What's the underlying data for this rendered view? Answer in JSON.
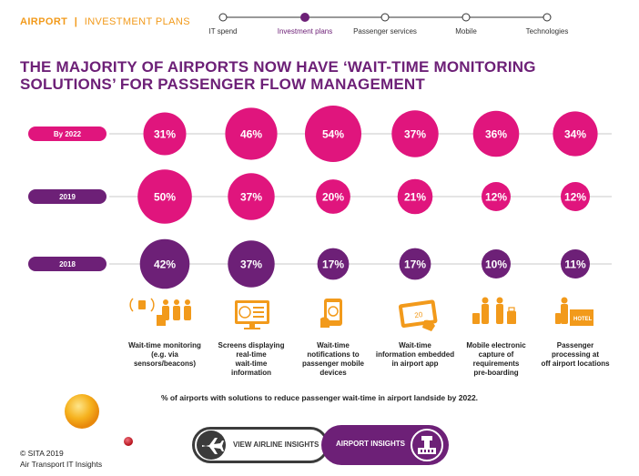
{
  "header": {
    "section": "AIRPORT",
    "separator": "|",
    "subsection": "INVESTMENT PLANS"
  },
  "nav": {
    "items": [
      {
        "label": "IT spend",
        "active": false
      },
      {
        "label": "Investment plans",
        "active": true
      },
      {
        "label": "Passenger services",
        "active": false
      },
      {
        "label": "Mobile",
        "active": false
      },
      {
        "label": "Technologies",
        "active": false
      }
    ]
  },
  "title_line1": "THE MAJORITY OF AIRPORTS NOW HAVE ‘WAIT-TIME MONITORING",
  "title_line2": "SOLUTIONS’ FOR PASSENGER FLOW MANAGEMENT",
  "colors": {
    "purple": "#6d2077",
    "magenta": "#e0157d",
    "orange": "#f29a1b",
    "dark": "#3b3b3b"
  },
  "chart_data": {
    "type": "bubble",
    "title": "THE MAJORITY OF AIRPORTS NOW HAVE ‘WAIT-TIME MONITORING SOLUTIONS’ FOR PASSENGER FLOW MANAGEMENT",
    "unit": "%",
    "categories": [
      "Wait-time monitoring (e.g. via sensors/beacons)",
      "Screens displaying real-time wait-time information",
      "Wait-time notifications to passenger mobile devices",
      "Wait-time information embedded in airport app",
      "Mobile electronic capture of requirements pre-boarding",
      "Passenger processing at off airport locations"
    ],
    "category_lines": [
      [
        "Wait-time monitoring",
        "(e.g. via sensors/beacons)"
      ],
      [
        "Screens displaying",
        "real-time",
        "wait-time",
        "information"
      ],
      [
        "Wait-time",
        "notifications to",
        "passenger mobile",
        "devices"
      ],
      [
        "Wait-time",
        "information embedded",
        "in airport app"
      ],
      [
        "Mobile electronic",
        "capture of",
        "requirements",
        "pre-boarding"
      ],
      [
        "Passenger",
        "processing at",
        "off airport locations"
      ]
    ],
    "category_icons": [
      "sensor-beacon-icon",
      "wait-time-screen-icon",
      "mobile-notification-icon",
      "airport-app-icon",
      "mobile-capture-icon",
      "hotel-checkin-icon"
    ],
    "series": [
      {
        "name": "By 2022",
        "color": "#e0157d",
        "values": [
          31,
          46,
          54,
          37,
          36,
          34
        ]
      },
      {
        "name": "2019",
        "color": "#e0157d",
        "values": [
          50,
          37,
          20,
          21,
          12,
          12
        ]
      },
      {
        "name": "2018",
        "color": "#6d2077",
        "values": [
          42,
          37,
          17,
          17,
          10,
          11
        ]
      }
    ]
  },
  "footnote": "% of airports with solutions to reduce passenger wait-time in airport landside by 2022.",
  "copyright_line1": "© SITA 2019",
  "copyright_line2": "Air Transport IT Insights",
  "buttons": {
    "airline_label": "VIEW AIRLINE INSIGHTS",
    "airport_label": "AIRPORT INSIGHTS"
  }
}
